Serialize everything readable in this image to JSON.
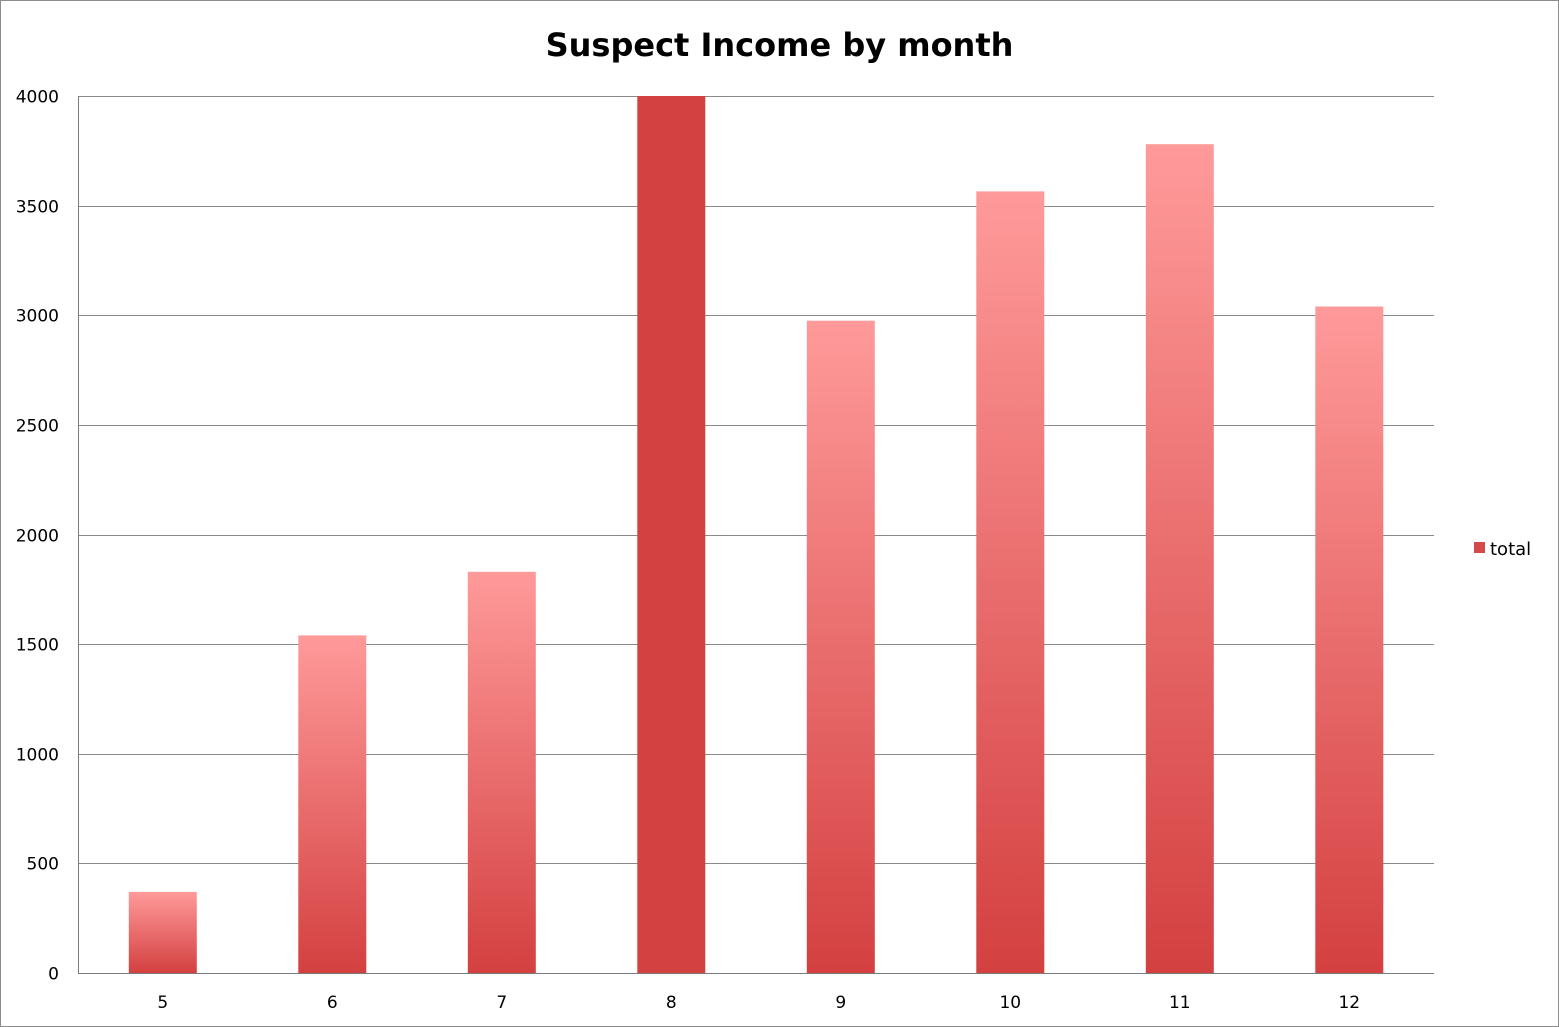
{
  "chart_data": {
    "type": "bar",
    "title": "Suspect Income by month",
    "xlabel": "",
    "ylabel": "",
    "categories": [
      "5",
      "6",
      "7",
      "8",
      "9",
      "10",
      "11",
      "12"
    ],
    "series": [
      {
        "name": "total",
        "values": [
          370,
          1540,
          1830,
          4000,
          2975,
          3565,
          3780,
          3040
        ]
      }
    ],
    "highlighted_category": "8",
    "ylim": [
      0,
      4000
    ],
    "yticks": [
      0,
      500,
      1000,
      1500,
      2000,
      2500,
      3000,
      3500,
      4000
    ],
    "grid": true,
    "legend_position": "right",
    "colors": {
      "bar_top": "#ff9a9a",
      "bar_bottom": "#d44040",
      "bar_highlight": "#d34140",
      "legend_swatch": "#d44a4a",
      "gridline": "#8a8a8a"
    }
  }
}
